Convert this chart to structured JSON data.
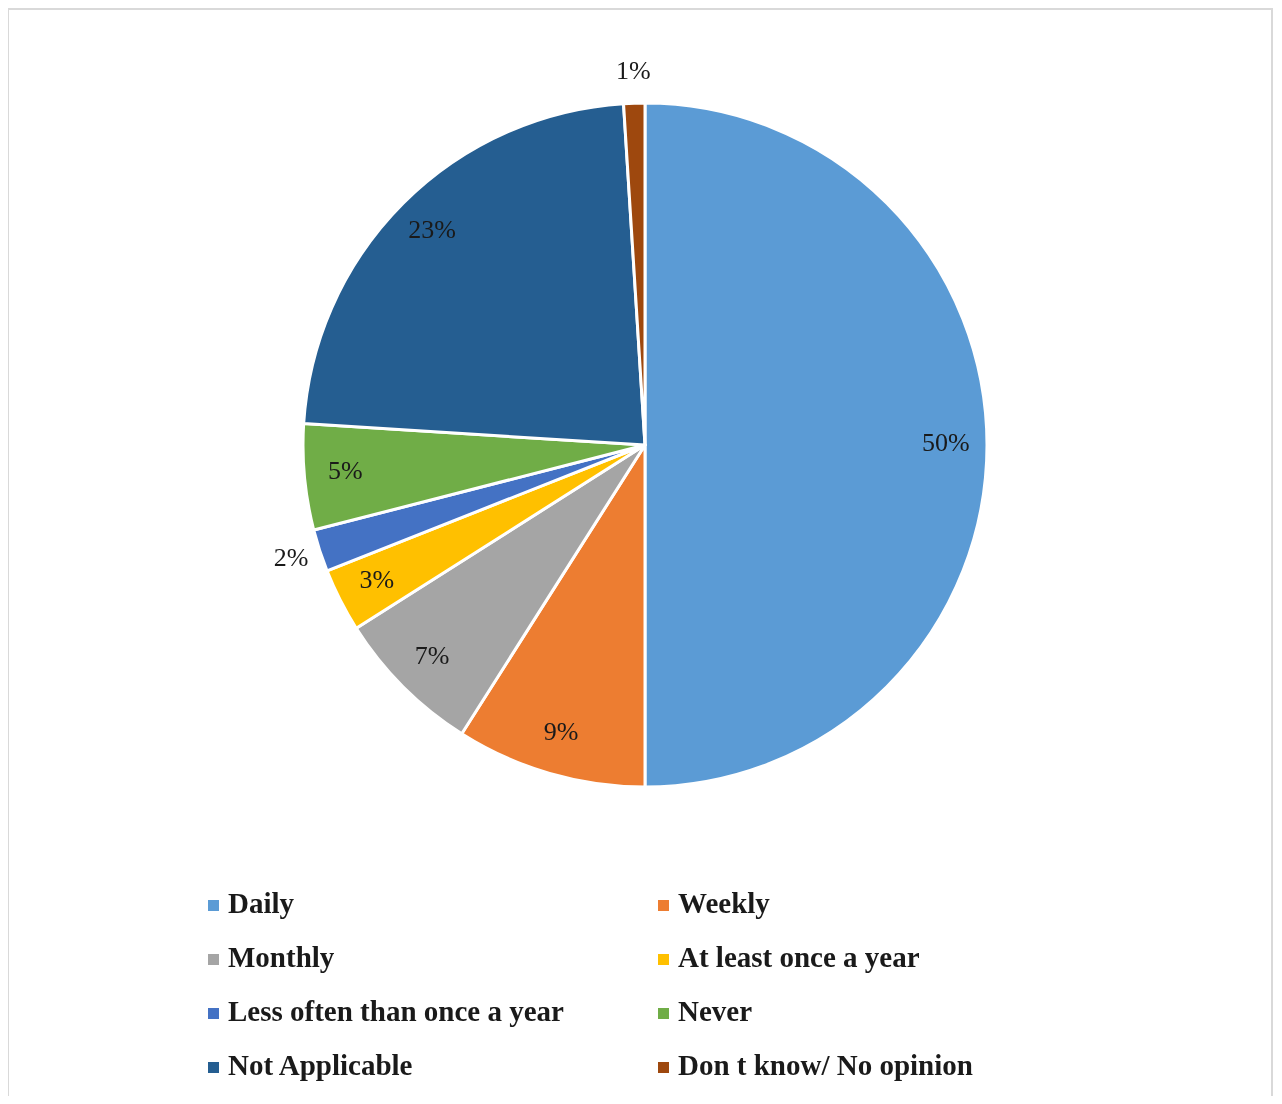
{
  "chart_data": {
    "type": "pie",
    "categories": [
      "Daily",
      "Weekly",
      "Monthly",
      "At least once a year",
      "Less often than once a year",
      "Never",
      "Not Applicable",
      "Don t know/ No opinion"
    ],
    "values": [
      50,
      9,
      7,
      3,
      2,
      5,
      23,
      1
    ],
    "colors": [
      "#5b9bd5",
      "#ed7d31",
      "#a5a5a5",
      "#ffc000",
      "#4472c4",
      "#70ad47",
      "#255e91",
      "#9e480e"
    ],
    "value_labels": [
      "50%",
      "9%",
      "7%",
      "3%",
      "2%",
      "5%",
      "23%",
      "1%"
    ],
    "legend": "bottom"
  }
}
